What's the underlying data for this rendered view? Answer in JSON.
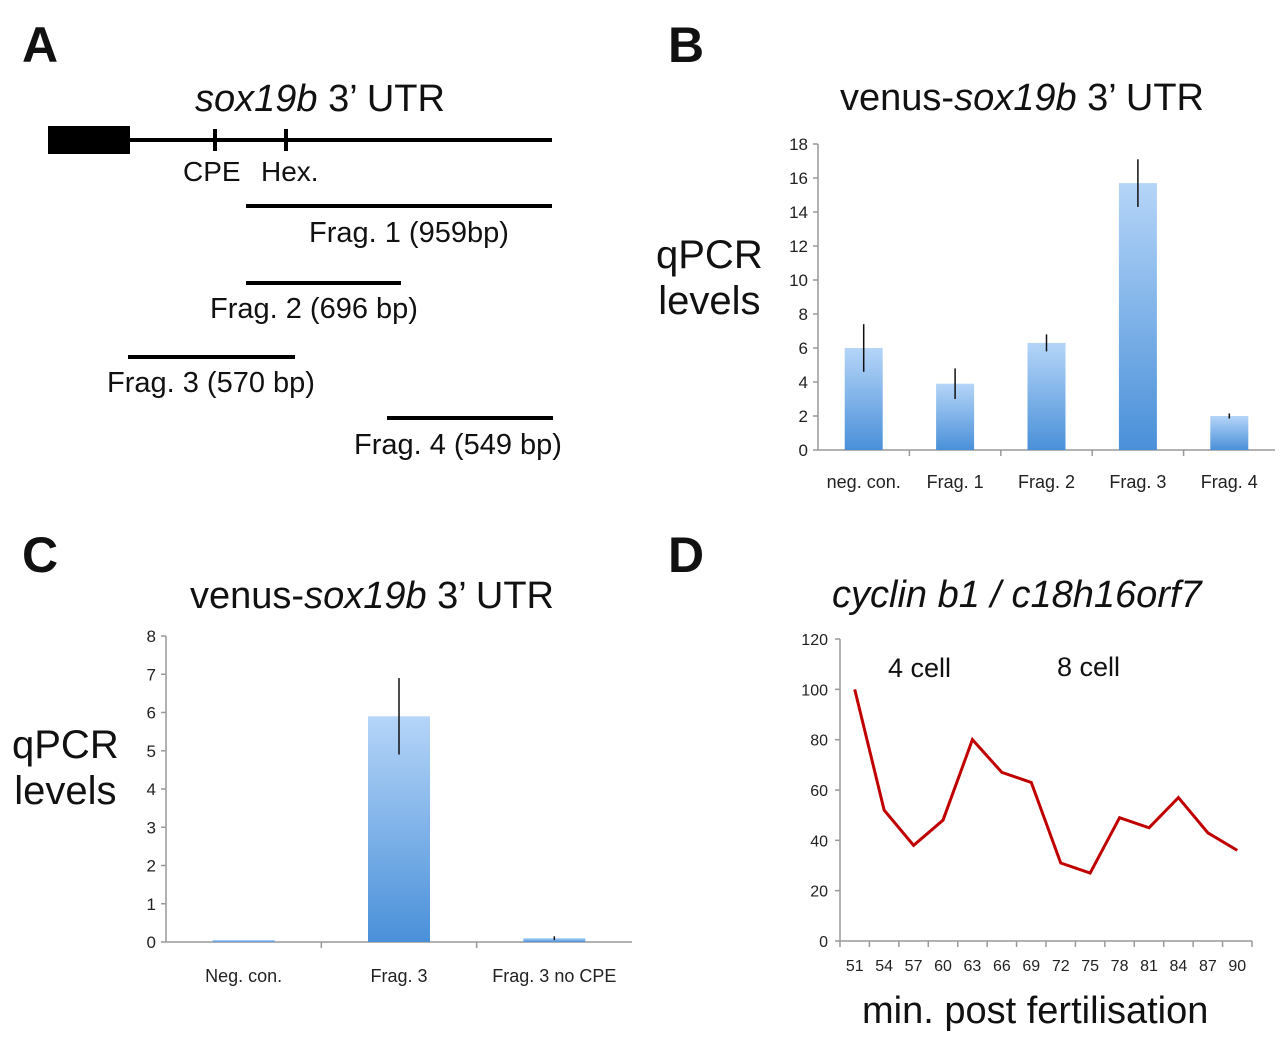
{
  "panels": {
    "A": {
      "letter": "A",
      "title_italic": "sox19b",
      "title_rest": " 3’ UTR",
      "cpe_label": "CPE",
      "hex_label": "Hex.",
      "fragments": [
        {
          "label": "Frag. 1 (959bp)"
        },
        {
          "label": "Frag. 2 (696 bp)"
        },
        {
          "label": "Frag. 3 (570 bp)"
        },
        {
          "label": "Frag. 4 (549 bp)"
        }
      ]
    },
    "B": {
      "letter": "B",
      "title_prefix": "venus-",
      "title_italic": "sox19b",
      "title_rest": " 3’ UTR",
      "ylabel_line1": "qPCR",
      "ylabel_line2": "levels"
    },
    "C": {
      "letter": "C",
      "title_prefix": "venus-",
      "title_italic": "sox19b",
      "title_rest": " 3’ UTR",
      "ylabel_line1": "qPCR",
      "ylabel_line2": "levels"
    },
    "D": {
      "letter": "D",
      "title": "cyclin b1 / c18h16orf7",
      "annot_4cell": "4 cell",
      "annot_8cell": "8 cell",
      "xlabel": "min. post fertilisation"
    }
  },
  "colors": {
    "bar_top": "#b5d5f8",
    "bar_bottom": "#4a90d9",
    "line": "#c00000",
    "axis": "#999999"
  },
  "chart_data": [
    {
      "id": "B",
      "type": "bar",
      "categories": [
        "neg. con.",
        "Frag. 1",
        "Frag. 2",
        "Frag. 3",
        "Frag. 4"
      ],
      "values": [
        6.0,
        3.9,
        6.3,
        15.7,
        2.0
      ],
      "errors": [
        1.4,
        0.9,
        0.5,
        1.4,
        0.15
      ],
      "ylim": [
        0,
        18
      ],
      "yticks": [
        0,
        2,
        4,
        6,
        8,
        10,
        12,
        14,
        16,
        18
      ],
      "title": "venus-sox19b 3’ UTR",
      "ylabel": "qPCR levels"
    },
    {
      "id": "C",
      "type": "bar",
      "categories": [
        "Neg. con.",
        "Frag. 3",
        "Frag. 3 no CPE"
      ],
      "values": [
        0.05,
        5.9,
        0.1
      ],
      "errors": [
        0.0,
        1.0,
        0.05
      ],
      "ylim": [
        0,
        8
      ],
      "yticks": [
        0,
        1,
        2,
        3,
        4,
        5,
        6,
        7,
        8
      ],
      "title": "venus-sox19b 3’ UTR",
      "ylabel": "qPCR levels"
    },
    {
      "id": "D",
      "type": "line",
      "x": [
        51,
        54,
        57,
        60,
        63,
        66,
        69,
        72,
        75,
        78,
        81,
        84,
        87,
        90
      ],
      "y": [
        100,
        52,
        38,
        48,
        80,
        67,
        63,
        31,
        27,
        49,
        45,
        57,
        43,
        36
      ],
      "ylim": [
        0,
        120
      ],
      "yticks": [
        0,
        20,
        40,
        60,
        80,
        100,
        120
      ],
      "title": "cyclin b1 / c18h16orf7",
      "xlabel": "min. post fertilisation"
    }
  ]
}
